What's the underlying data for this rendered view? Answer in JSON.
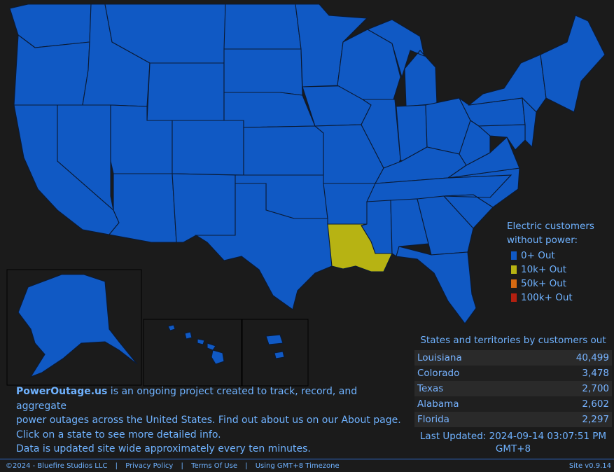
{
  "colors": {
    "background": "#1b1b1b",
    "level_0": "#1059c4",
    "level_10k": "#b7b313",
    "level_50k": "#d66a12",
    "level_100k": "#b42010",
    "text": "#6fb2ff"
  },
  "legend": {
    "title_line1": "Electric customers",
    "title_line2": "without power:",
    "items": [
      {
        "label": "0+ Out",
        "color": "#1059c4"
      },
      {
        "label": "10k+ Out",
        "color": "#b7b313"
      },
      {
        "label": "50k+ Out",
        "color": "#d66a12"
      },
      {
        "label": "100k+ Out",
        "color": "#b42010"
      }
    ]
  },
  "ranking": {
    "heading": "States and territories by customers out",
    "rows": [
      {
        "state": "Louisiana",
        "out": "40,499"
      },
      {
        "state": "Colorado",
        "out": "3,478"
      },
      {
        "state": "Texas",
        "out": "2,700"
      },
      {
        "state": "Alabama",
        "out": "2,602"
      },
      {
        "state": "Florida",
        "out": "2,297"
      }
    ],
    "updated_line1": "Last Updated: 2024-09-14 03:07:51 PM",
    "updated_line2": "GMT+8"
  },
  "intro": {
    "brand": "PowerOutage.us",
    "line1_rest": " is an ongoing project created to track, record, and aggregate",
    "line2_pre": "power outages across the United States. Find out about us on our ",
    "line2_link": "About",
    "line2_post": " page.",
    "line3": "Click on a state to see more detailed info.",
    "line4": "Data is updated site wide approximately every ten minutes."
  },
  "footer": {
    "copyright": "©2024 - Bluefire Studios LLC",
    "privacy": "Privacy Policy",
    "terms": "Terms Of Use",
    "timezone": "Using GMT+8 Timezone",
    "version": "Site v0.9.14"
  }
}
